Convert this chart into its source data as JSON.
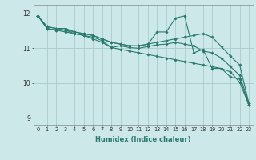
{
  "xlabel": "Humidex (Indice chaleur)",
  "bg_color": "#cce8e8",
  "grid_color": "#aacccc",
  "line_color": "#2a7a6e",
  "xlim": [
    -0.5,
    23.5
  ],
  "ylim": [
    8.8,
    12.25
  ],
  "yticks": [
    9,
    10,
    11,
    12
  ],
  "xticks": [
    0,
    1,
    2,
    3,
    4,
    5,
    6,
    7,
    8,
    9,
    10,
    11,
    12,
    13,
    14,
    15,
    16,
    17,
    18,
    19,
    20,
    21,
    22,
    23
  ],
  "series": [
    [
      11.93,
      11.62,
      11.57,
      11.57,
      11.47,
      11.42,
      11.37,
      11.27,
      11.17,
      11.12,
      11.07,
      11.07,
      11.12,
      11.47,
      11.47,
      11.87,
      11.93,
      10.87,
      10.97,
      10.42,
      10.42,
      10.17,
      10.12,
      9.37
    ],
    [
      11.93,
      11.62,
      11.57,
      11.52,
      11.47,
      11.42,
      11.37,
      11.27,
      11.17,
      11.12,
      11.07,
      11.07,
      11.12,
      11.17,
      11.22,
      11.27,
      11.32,
      11.37,
      11.42,
      11.32,
      11.05,
      10.77,
      10.52,
      9.42
    ],
    [
      11.93,
      11.57,
      11.52,
      11.52,
      11.42,
      11.37,
      11.32,
      11.22,
      11.02,
      11.07,
      11.02,
      11.0,
      11.05,
      11.1,
      11.12,
      11.17,
      11.12,
      11.07,
      10.92,
      10.87,
      10.72,
      10.47,
      10.22,
      9.42
    ],
    [
      11.93,
      11.57,
      11.52,
      11.47,
      11.42,
      11.37,
      11.27,
      11.17,
      11.02,
      10.97,
      10.92,
      10.87,
      10.82,
      10.77,
      10.72,
      10.67,
      10.62,
      10.57,
      10.52,
      10.47,
      10.42,
      10.32,
      10.02,
      9.37
    ]
  ]
}
